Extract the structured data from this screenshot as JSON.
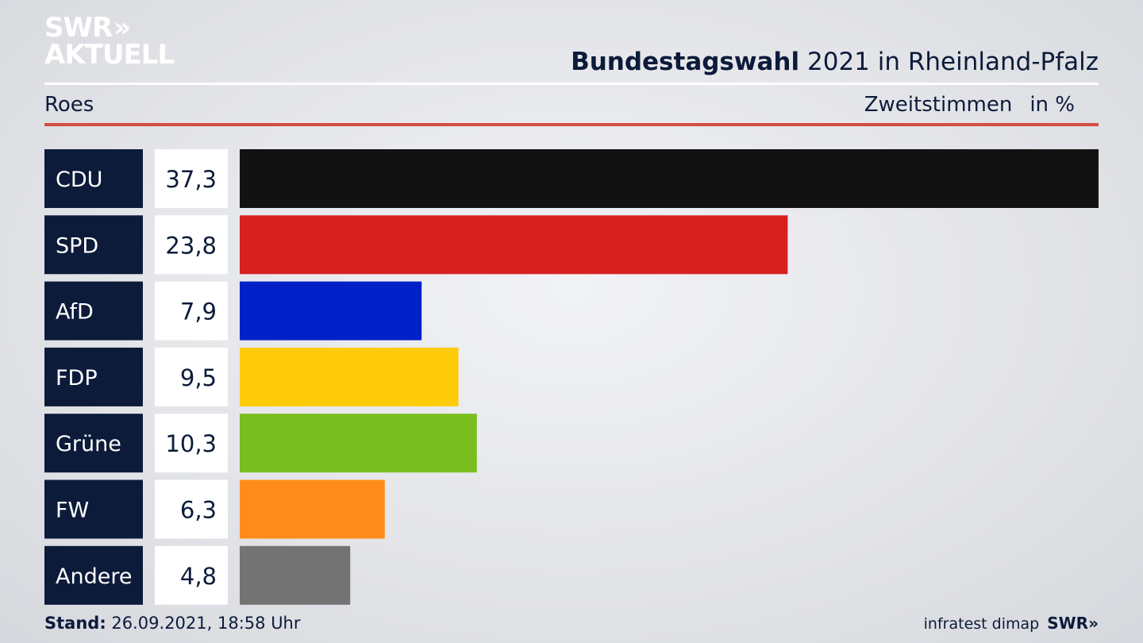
{
  "logo": {
    "line1": "SWR",
    "line1_chevrons": "»",
    "line2": "AKTUELL"
  },
  "header": {
    "title_bold": "Bundestagswahl",
    "title_rest": "2021 in Rheinland-Pfalz",
    "constituency": "Roes",
    "vote_type": "Zweitstimmen",
    "unit": "in %"
  },
  "footer": {
    "stand_label": "Stand:",
    "stand_value": "26.09.2021, 18:58 Uhr",
    "source": "infratest dimap",
    "broadcaster": "SWR»"
  },
  "colors": {
    "label_box": "#0c1b3a",
    "value_box": "#ffffff",
    "accent_rule": "#d05040",
    "text": "#0c1b3a"
  },
  "chart_data": {
    "type": "bar",
    "orientation": "horizontal",
    "categories": [
      "CDU",
      "SPD",
      "AfD",
      "FDP",
      "Grüne",
      "FW",
      "Andere"
    ],
    "values": [
      37.3,
      23.8,
      7.9,
      9.5,
      10.3,
      6.3,
      4.8
    ],
    "value_labels": [
      "37,3",
      "23,8",
      "7,9",
      "9,5",
      "10,3",
      "6,3",
      "4,8"
    ],
    "bar_colors": [
      "#121212",
      "#d82020",
      "#0021c8",
      "#fecb0a",
      "#78be1e",
      "#ff8c1a",
      "#737373"
    ],
    "xlim": [
      0,
      37.3
    ],
    "grid": false,
    "legend": "none"
  }
}
